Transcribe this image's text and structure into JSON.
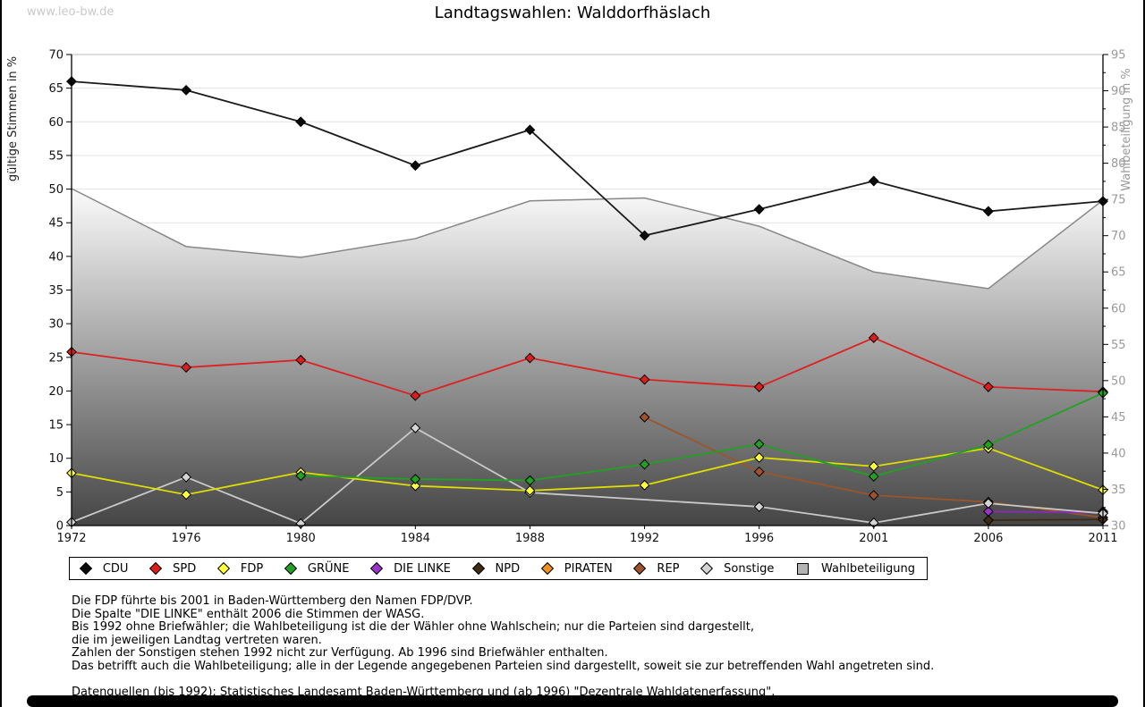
{
  "watermark": "www.leo-bw.de",
  "title": "Landtagswahlen: Walddorfhäslach",
  "chart_data": {
    "type": "line",
    "x": [
      1972,
      1976,
      1980,
      1984,
      1988,
      1992,
      1996,
      2001,
      2006,
      2011
    ],
    "left_axis": {
      "label": "gültige Stimmen in %",
      "min": 0,
      "max": 70,
      "step": 5,
      "color": "#222222"
    },
    "right_axis": {
      "label": "Wahlbeteiligung in %",
      "min": 30,
      "max": 95,
      "step": 5,
      "color": "#999999"
    },
    "grid": true,
    "legend_position": "bottom",
    "area_gradient": [
      "#fbfbfb",
      "#454545"
    ],
    "series": [
      {
        "name": "CDU",
        "axis": "left",
        "marker": "diamond",
        "color": "#1a1a1a",
        "marker_fill": "#0a0a0a",
        "values": [
          66.0,
          64.7,
          60.0,
          53.5,
          58.8,
          43.1,
          47.0,
          51.2,
          46.7,
          48.2
        ]
      },
      {
        "name": "SPD",
        "axis": "left",
        "marker": "diamond",
        "color": "#dd2020",
        "marker_fill": "#dd1c1c",
        "values": [
          25.8,
          23.5,
          24.6,
          19.3,
          24.9,
          21.7,
          20.6,
          27.9,
          20.6,
          19.9
        ]
      },
      {
        "name": "FDP",
        "axis": "left",
        "marker": "diamond",
        "color": "#dede00",
        "marker_fill": "#ffff3c",
        "values": [
          7.8,
          4.6,
          7.9,
          5.9,
          5.2,
          6.0,
          10.1,
          8.8,
          11.5,
          5.3
        ]
      },
      {
        "name": "GRÜNE",
        "axis": "left",
        "marker": "diamond",
        "color": "#21a121",
        "marker_fill": "#21a121",
        "values": [
          null,
          null,
          7.4,
          6.9,
          6.7,
          9.1,
          12.1,
          7.3,
          12.0,
          19.7
        ]
      },
      {
        "name": "DIE LINKE",
        "axis": "left",
        "marker": "diamond",
        "color": "#8a2bb8",
        "marker_fill": "#9933cc",
        "values": [
          null,
          null,
          null,
          null,
          null,
          null,
          null,
          null,
          2.1,
          1.9
        ]
      },
      {
        "name": "NPD",
        "axis": "left",
        "marker": "diamond",
        "color": "#3f2a14",
        "marker_fill": "#3f2a14",
        "values": [
          null,
          null,
          null,
          null,
          null,
          null,
          null,
          null,
          0.8,
          0.9
        ]
      },
      {
        "name": "PIRATEN",
        "axis": "left",
        "marker": "diamond",
        "color": "#e8821a",
        "marker_fill": "#f29024",
        "values": [
          null,
          null,
          null,
          null,
          null,
          null,
          null,
          null,
          null,
          2.1
        ]
      },
      {
        "name": "REP",
        "axis": "left",
        "marker": "diamond",
        "color": "#99562b",
        "marker_fill": "#a0522d",
        "values": [
          null,
          null,
          null,
          null,
          null,
          16.1,
          8.0,
          4.5,
          3.5,
          1.2
        ]
      },
      {
        "name": "Sonstige",
        "axis": "left",
        "marker": "diamond",
        "color": "#c9c9c9",
        "marker_fill": "#d4d4d4",
        "values": [
          0.5,
          7.2,
          0.3,
          14.5,
          4.9,
          null,
          2.8,
          0.4,
          3.3,
          1.8
        ]
      },
      {
        "name": "Wahlbeteiligung",
        "axis": "right",
        "type": "area",
        "marker": "square",
        "color": "#878787",
        "marker_fill": "#b3b3b3",
        "values": [
          76.5,
          68.5,
          67.0,
          69.6,
          74.8,
          75.2,
          71.3,
          65.0,
          62.7,
          74.9
        ]
      }
    ],
    "draw_order": [
      "Wahlbeteiligung",
      "REP",
      "PIRATEN",
      "NPD",
      "DIE LINKE",
      "Sonstige",
      "FDP",
      "SPD",
      "GRÜNE",
      "CDU"
    ]
  },
  "footnotes": {
    "lines": [
      "Die FDP führte bis 2001 in Baden-Württemberg den Namen FDP/DVP.",
      "Die Spalte \"DIE LINKE\" enthält 2006 die Stimmen der WASG.",
      "Bis 1992 ohne Briefwähler; die Wahlbeteiligung ist die der Wähler ohne Wahlschein; nur die Parteien sind dargestellt,",
      "die im jeweiligen Landtag vertreten waren.",
      "Zahlen der Sonstigen stehen 1992 nicht zur Verfügung. Ab 1996 sind Briefwähler enthalten.",
      "Das betrifft auch die Wahlbeteiligung; alle in der Legende angegebenen Parteien sind dargestellt, soweit sie zur betreffenden Wahl angetreten sind."
    ],
    "source": "Datenquellen (bis 1992): Statistisches Landesamt Baden-Württemberg und (ab 1996) \"Dezentrale Wahldatenerfassung\"."
  }
}
